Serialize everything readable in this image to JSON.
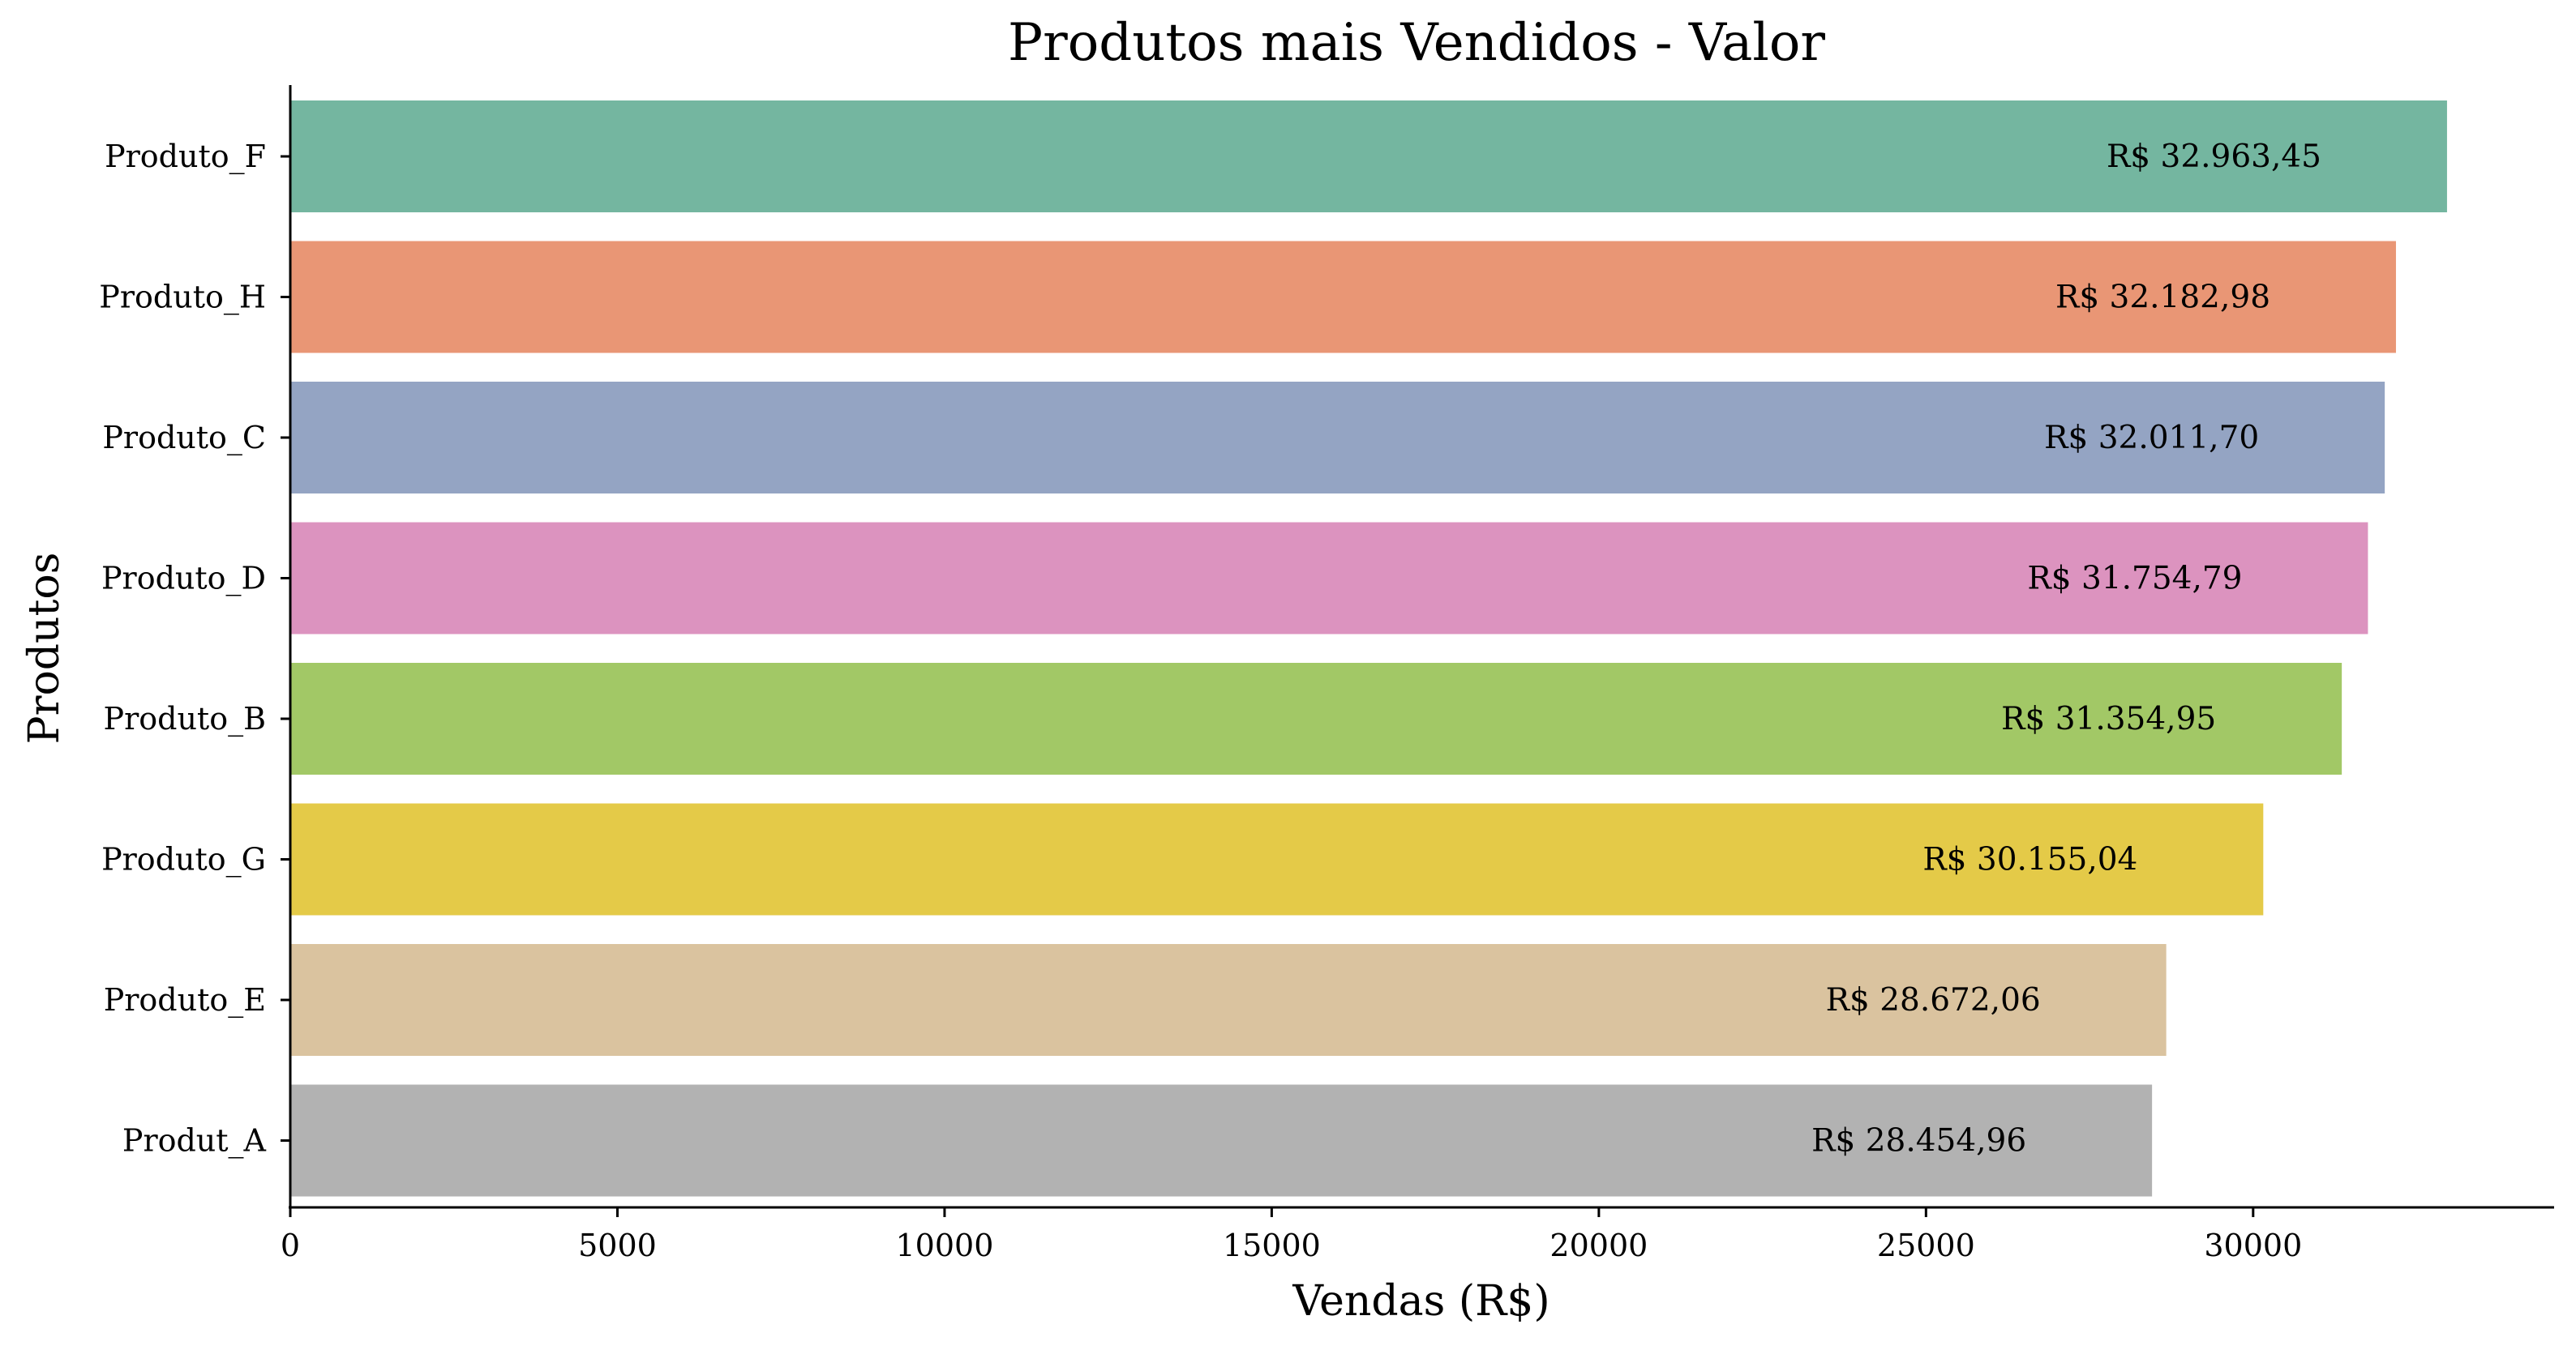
{
  "chart_data": {
    "type": "bar",
    "orientation": "horizontal",
    "title": "Produtos mais Vendidos - Valor",
    "xlabel": "Vendas (R$)",
    "ylabel": "Produtos",
    "xlim": [
      0,
      34600
    ],
    "xticks": [
      0,
      5000,
      10000,
      15000,
      20000,
      25000,
      30000
    ],
    "xtick_labels": [
      "0",
      "5000",
      "10000",
      "15000",
      "20000",
      "25000",
      "30000"
    ],
    "grid": false,
    "categories": [
      "Produto_F",
      "Produto_H",
      "Produto_C",
      "Produto_D",
      "Produto_B",
      "Produto_G",
      "Produto_E",
      "Produt_A"
    ],
    "values": [
      32963.45,
      32182.98,
      32011.7,
      31754.79,
      31354.95,
      30155.04,
      28672.06,
      28454.96
    ],
    "value_labels": [
      "R$ 32.963,45",
      "R$ 32.182,98",
      "R$ 32.011,70",
      "R$ 31.754,79",
      "R$ 31.354,95",
      "R$ 30.155,04",
      "R$ 28.672,06",
      "R$ 28.454,96"
    ],
    "colors": [
      "#74b6a0",
      "#e99675",
      "#94a4c3",
      "#dc93bf",
      "#a2c866",
      "#e4ca48",
      "#dac39f",
      "#b2b2b2"
    ]
  }
}
